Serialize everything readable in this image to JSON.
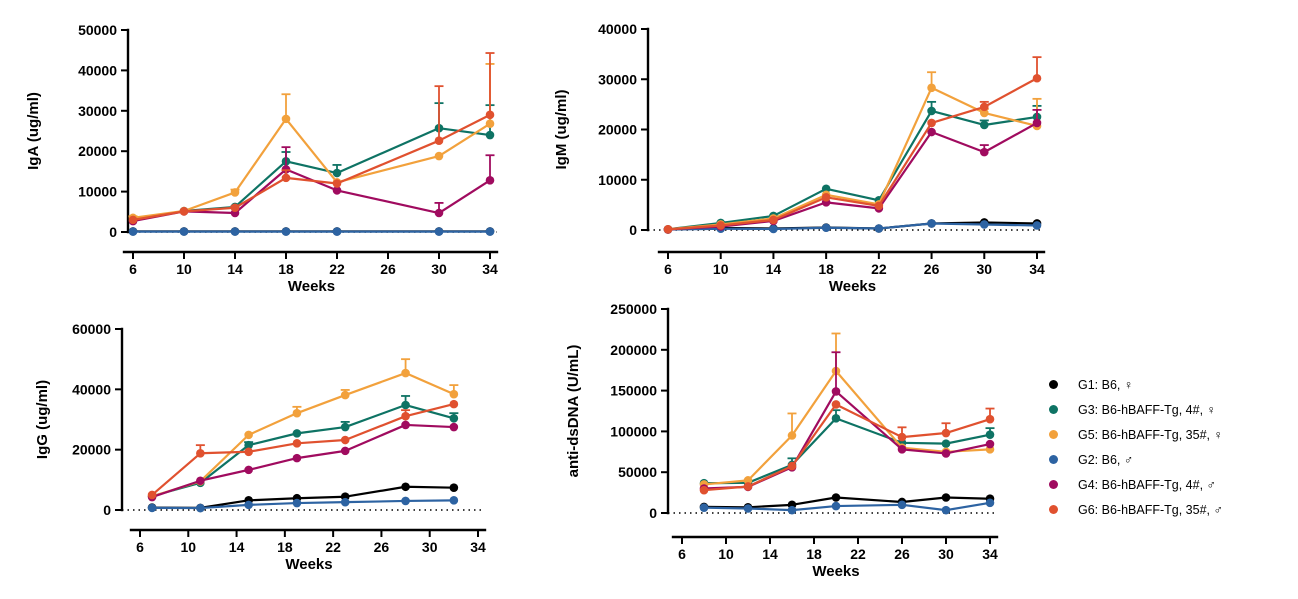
{
  "page": {
    "background": "#ffffff"
  },
  "legend": {
    "items": [
      {
        "id": "G1",
        "label": "G1: B6, ♀",
        "color": "#000000"
      },
      {
        "id": "G3",
        "label": "G3: B6-hBAFF-Tg, 4#, ♀",
        "color": "#0e7364"
      },
      {
        "id": "G5",
        "label": "G5: B6-hBAFF-Tg, 35#, ♀",
        "color": "#f2a13c"
      },
      {
        "id": "G2",
        "label": "G2: B6, ♂",
        "color": "#2d63a2"
      },
      {
        "id": "G4",
        "label": "G4: B6-hBAFF-Tg, 4#, ♂",
        "color": "#a00b5f"
      },
      {
        "id": "G6",
        "label": "G6: B6-hBAFF-Tg, 35#, ♂",
        "color": "#e0512f"
      }
    ]
  },
  "chart_data": [
    {
      "id": "iga",
      "type": "line",
      "title": "",
      "ylabel": "IgA (ug/ml)",
      "xlabel": "Weeks",
      "ylim": [
        0,
        50000
      ],
      "yticks": [
        0,
        10000,
        20000,
        30000,
        40000,
        50000
      ],
      "xticks": [
        6,
        10,
        14,
        18,
        22,
        26,
        30,
        34
      ],
      "x": [
        6,
        10,
        14,
        18,
        22,
        30,
        34
      ],
      "grid": false,
      "zero_baseline": "dotted",
      "series": [
        {
          "name": "G1",
          "color": "#000000",
          "values": [
            150,
            150,
            150,
            150,
            150,
            150,
            150
          ],
          "err_up": [
            0,
            0,
            0,
            0,
            0,
            0,
            0
          ]
        },
        {
          "name": "G3",
          "color": "#0e7364",
          "values": [
            2800,
            5200,
            6200,
            17500,
            14600,
            25700,
            24000
          ],
          "err_up": [
            0,
            0,
            0,
            2300,
            2000,
            6200,
            7400
          ]
        },
        {
          "name": "G5",
          "color": "#f2a13c",
          "values": [
            3500,
            5200,
            9800,
            28000,
            12300,
            18800,
            26800
          ],
          "err_up": [
            400,
            0,
            700,
            6100,
            0,
            0,
            14800
          ]
        },
        {
          "name": "G2",
          "color": "#2d63a2",
          "values": [
            100,
            100,
            100,
            100,
            100,
            100,
            100
          ],
          "err_up": [
            0,
            0,
            0,
            0,
            0,
            0,
            0
          ]
        },
        {
          "name": "G4",
          "color": "#a00b5f",
          "values": [
            2700,
            5100,
            4700,
            15500,
            10300,
            4700,
            12800
          ],
          "err_up": [
            0,
            0,
            0,
            5500,
            0,
            2500,
            6200
          ]
        },
        {
          "name": "G6",
          "color": "#e0512f",
          "values": [
            3000,
            5100,
            6000,
            13400,
            12000,
            22600,
            29000
          ],
          "err_up": [
            0,
            0,
            400,
            1900,
            0,
            13500,
            15300
          ]
        }
      ]
    },
    {
      "id": "igm",
      "type": "line",
      "title": "",
      "ylabel": "IgM (ug/ml)",
      "xlabel": "Weeks",
      "ylim": [
        0,
        40000
      ],
      "yticks": [
        0,
        10000,
        20000,
        30000,
        40000
      ],
      "xticks": [
        6,
        10,
        14,
        18,
        22,
        26,
        30,
        34
      ],
      "x": [
        6,
        10,
        14,
        18,
        22,
        26,
        30,
        34
      ],
      "grid": false,
      "zero_baseline": "dotted",
      "series": [
        {
          "name": "G1",
          "color": "#000000",
          "values": [
            100,
            400,
            300,
            500,
            300,
            1300,
            1500,
            1300
          ],
          "err_up": [
            0,
            0,
            0,
            0,
            0,
            0,
            0,
            0
          ]
        },
        {
          "name": "G3",
          "color": "#0e7364",
          "values": [
            150,
            1400,
            2800,
            8200,
            5900,
            23700,
            20900,
            22500
          ],
          "err_up": [
            0,
            0,
            0,
            0,
            0,
            1800,
            900,
            2200
          ]
        },
        {
          "name": "G5",
          "color": "#f2a13c",
          "values": [
            150,
            1100,
            2300,
            7000,
            5100,
            28300,
            23300,
            20700
          ],
          "err_up": [
            0,
            0,
            0,
            0,
            0,
            3100,
            800,
            5400
          ]
        },
        {
          "name": "G2",
          "color": "#2d63a2",
          "values": [
            100,
            250,
            200,
            450,
            300,
            1300,
            1100,
            900
          ],
          "err_up": [
            0,
            0,
            0,
            0,
            0,
            0,
            0,
            0
          ]
        },
        {
          "name": "G4",
          "color": "#a00b5f",
          "values": [
            120,
            700,
            1800,
            5500,
            4300,
            19500,
            15500,
            21300
          ],
          "err_up": [
            0,
            0,
            0,
            0,
            0,
            0,
            1400,
            2600
          ]
        },
        {
          "name": "G6",
          "color": "#e0512f",
          "values": [
            130,
            900,
            2000,
            6500,
            4800,
            21300,
            24500,
            30200
          ],
          "err_up": [
            0,
            0,
            0,
            0,
            0,
            0,
            1000,
            4200
          ]
        }
      ]
    },
    {
      "id": "igg",
      "type": "line",
      "title": "",
      "ylabel": "IgG (ug/ml)",
      "xlabel": "Weeks",
      "ylim": [
        0,
        60000
      ],
      "yticks": [
        0,
        20000,
        40000,
        60000
      ],
      "xticks": [
        6,
        10,
        14,
        18,
        22,
        26,
        30,
        34
      ],
      "x": [
        7,
        11,
        15,
        19,
        23,
        28,
        32
      ],
      "grid": false,
      "zero_baseline": "dotted",
      "series": [
        {
          "name": "G1",
          "color": "#000000",
          "values": [
            800,
            700,
            3200,
            3900,
            4400,
            7700,
            7400
          ],
          "err_up": [
            0,
            0,
            0,
            0,
            0,
            0,
            0
          ]
        },
        {
          "name": "G3",
          "color": "#0e7364",
          "values": [
            4600,
            9000,
            21500,
            25400,
            27500,
            34800,
            30400
          ],
          "err_up": [
            0,
            0,
            1000,
            0,
            1700,
            3000,
            1700
          ]
        },
        {
          "name": "G5",
          "color": "#f2a13c",
          "values": [
            4500,
            9500,
            24900,
            32100,
            38100,
            45400,
            38400
          ],
          "err_up": [
            0,
            0,
            0,
            2100,
            1700,
            4600,
            3000
          ]
        },
        {
          "name": "G2",
          "color": "#2d63a2",
          "values": [
            700,
            650,
            1700,
            2300,
            2600,
            3000,
            3200
          ],
          "err_up": [
            0,
            0,
            0,
            0,
            0,
            0,
            0
          ]
        },
        {
          "name": "G4",
          "color": "#a00b5f",
          "values": [
            4300,
            9700,
            13300,
            17200,
            19600,
            28200,
            27500
          ],
          "err_up": [
            0,
            0,
            0,
            0,
            0,
            0,
            0
          ]
        },
        {
          "name": "G6",
          "color": "#e0512f",
          "values": [
            5000,
            18800,
            19300,
            22100,
            23200,
            31100,
            35100
          ],
          "err_up": [
            0,
            2700,
            0,
            0,
            0,
            2000,
            0
          ]
        }
      ]
    },
    {
      "id": "anti-dsdna",
      "type": "line",
      "title": "",
      "ylabel": "anti-dsDNA (U/mL)",
      "xlabel": "Weeks",
      "ylim": [
        0,
        250000
      ],
      "yticks": [
        0,
        50000,
        100000,
        150000,
        200000,
        250000
      ],
      "xticks": [
        6,
        10,
        14,
        18,
        22,
        26,
        30,
        34
      ],
      "x": [
        8,
        12,
        16,
        20,
        26,
        30,
        34
      ],
      "grid": false,
      "zero_baseline": "dotted",
      "series": [
        {
          "name": "G1",
          "color": "#000000",
          "values": [
            7500,
            7000,
            10000,
            19000,
            13500,
            19000,
            17500
          ],
          "err_up": [
            0,
            0,
            0,
            0,
            0,
            0,
            0
          ]
        },
        {
          "name": "G3",
          "color": "#0e7364",
          "values": [
            36500,
            37000,
            59000,
            116000,
            86000,
            85000,
            96000
          ],
          "err_up": [
            0,
            0,
            8000,
            10000,
            0,
            0,
            8000
          ]
        },
        {
          "name": "G5",
          "color": "#f2a13c",
          "values": [
            35000,
            40000,
            95000,
            174000,
            80000,
            75000,
            78000
          ],
          "err_up": [
            0,
            0,
            27000,
            46000,
            0,
            0,
            0
          ]
        },
        {
          "name": "G2",
          "color": "#2d63a2",
          "values": [
            6500,
            5500,
            3500,
            8500,
            10000,
            3500,
            12500
          ],
          "err_up": [
            0,
            0,
            0,
            0,
            0,
            0,
            0
          ]
        },
        {
          "name": "G4",
          "color": "#a00b5f",
          "values": [
            30000,
            32000,
            56000,
            149000,
            78000,
            73000,
            84500
          ],
          "err_up": [
            0,
            0,
            0,
            48000,
            0,
            0,
            0
          ]
        },
        {
          "name": "G6",
          "color": "#e0512f",
          "values": [
            28000,
            32500,
            57500,
            133000,
            93000,
            98000,
            115000
          ],
          "err_up": [
            0,
            0,
            0,
            0,
            12000,
            12000,
            13000
          ]
        }
      ]
    }
  ]
}
